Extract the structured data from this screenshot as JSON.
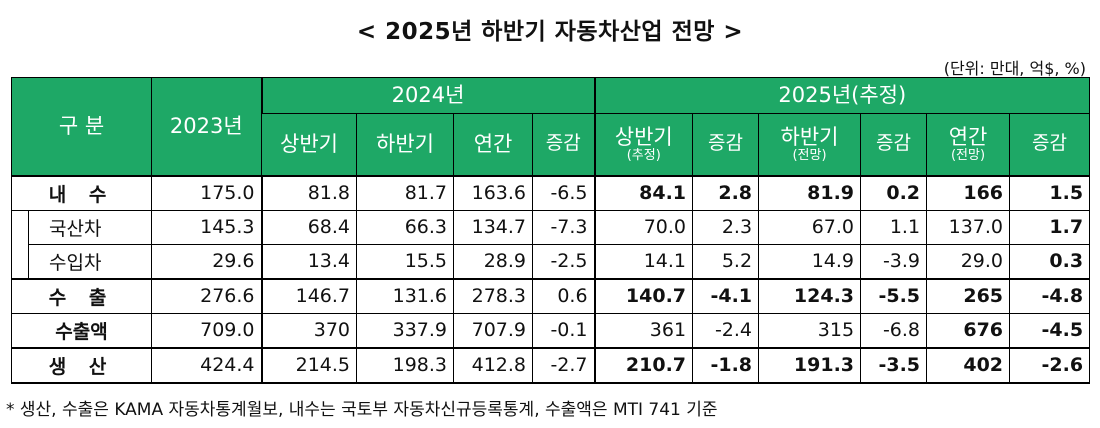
{
  "title": "< 2025년 하반기 자동차산업 전망 >",
  "unit": "(단위: 만대, 억$, %)",
  "header": {
    "category": "구 분",
    "y2023": "2023년",
    "y2024": "2024년",
    "y2025": "2025년(추정)",
    "h1": "상반기",
    "h2": "하반기",
    "annual": "연간",
    "change": "증감",
    "h1_25": "상반기",
    "h1_25_sub": "(추정)",
    "h2_25": "하반기",
    "h2_25_sub": "(전망)",
    "annual_25": "연간",
    "annual_25_sub": "(전망)"
  },
  "rows": [
    {
      "label": "내 수",
      "v": [
        "175.0",
        "81.8",
        "81.7",
        "163.6",
        "-6.5",
        "84.1",
        "2.8",
        "81.9",
        "0.2",
        "166",
        "1.5"
      ]
    },
    {
      "label": "국산차",
      "v": [
        "145.3",
        "68.4",
        "66.3",
        "134.7",
        "-7.3",
        "70.0",
        "2.3",
        "67.0",
        "1.1",
        "137.0",
        "1.7"
      ]
    },
    {
      "label": "수입차",
      "v": [
        "29.6",
        "13.4",
        "15.5",
        "28.9",
        "-2.5",
        "14.1",
        "5.2",
        "14.9",
        "-3.9",
        "29.0",
        "0.3"
      ]
    },
    {
      "label": "수 출",
      "v": [
        "276.6",
        "146.7",
        "131.6",
        "278.3",
        "0.6",
        "140.7",
        "-4.1",
        "124.3",
        "-5.5",
        "265",
        "-4.8"
      ]
    },
    {
      "label": "수출액",
      "v": [
        "709.0",
        "370",
        "337.9",
        "707.9",
        "-0.1",
        "361",
        "-2.4",
        "315",
        "-6.8",
        "676",
        "-4.5"
      ]
    },
    {
      "label": "생 산",
      "v": [
        "424.4",
        "214.5",
        "198.3",
        "412.8",
        "-2.7",
        "210.7",
        "-1.8",
        "191.3",
        "-3.5",
        "402",
        "-2.6"
      ]
    }
  ],
  "note": "* 생산, 수출은 KAMA 자동차통계월보, 내수는 국토부 자동차신규등록통계, 수출액은 MTI 741 기준"
}
